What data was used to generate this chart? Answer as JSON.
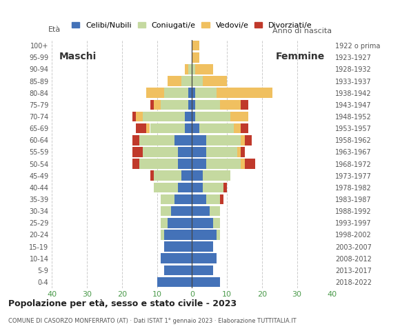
{
  "title": "Popolazione per età, sesso e stato civile - 2023",
  "subtitle": "COMUNE DI CASORZO MONFERRATO (AT) · Dati ISTAT 1° gennaio 2023 · Elaborazione TUTTITALIA.IT",
  "xlabel_left": "Maschi",
  "xlabel_right": "Femmine",
  "ylabel_left": "Età",
  "ylabel_right": "Anno di nascita",
  "age_groups": [
    "0-4",
    "5-9",
    "10-14",
    "15-19",
    "20-24",
    "25-29",
    "30-34",
    "35-39",
    "40-44",
    "45-49",
    "50-54",
    "55-59",
    "60-64",
    "65-69",
    "70-74",
    "75-79",
    "80-84",
    "85-89",
    "90-94",
    "95-99",
    "100+"
  ],
  "birth_years": [
    "2018-2022",
    "2013-2017",
    "2008-2012",
    "2003-2007",
    "1998-2002",
    "1993-1997",
    "1988-1992",
    "1983-1987",
    "1978-1982",
    "1973-1977",
    "1968-1972",
    "1963-1967",
    "1958-1962",
    "1953-1957",
    "1948-1952",
    "1943-1947",
    "1938-1942",
    "1933-1937",
    "1928-1932",
    "1923-1927",
    "1922 o prima"
  ],
  "colors": {
    "celibi": "#4472b8",
    "coniugati": "#c5d9a0",
    "vedovi": "#f0c060",
    "divorziati": "#c0392b"
  },
  "legend_labels": [
    "Celibi/Nubili",
    "Coniugati/e",
    "Vedovi/e",
    "Divorziati/e"
  ],
  "xlim": 40,
  "male_celibi": [
    10,
    8,
    9,
    8,
    8,
    7,
    6,
    5,
    4,
    3,
    4,
    4,
    5,
    2,
    2,
    1,
    1,
    0,
    0,
    0,
    0
  ],
  "male_coniugati": [
    0,
    0,
    0,
    0,
    1,
    2,
    3,
    4,
    7,
    8,
    11,
    10,
    10,
    10,
    12,
    8,
    7,
    3,
    1,
    0,
    0
  ],
  "male_vedovi": [
    0,
    0,
    0,
    0,
    0,
    0,
    0,
    0,
    0,
    0,
    0,
    0,
    0,
    1,
    2,
    2,
    5,
    4,
    1,
    0,
    0
  ],
  "male_divorziati": [
    0,
    0,
    0,
    0,
    0,
    0,
    0,
    0,
    0,
    1,
    2,
    3,
    2,
    3,
    1,
    1,
    0,
    0,
    0,
    0,
    0
  ],
  "female_celibi": [
    8,
    6,
    7,
    6,
    7,
    6,
    5,
    4,
    3,
    3,
    4,
    4,
    4,
    2,
    1,
    1,
    1,
    0,
    0,
    0,
    0
  ],
  "female_coniugati": [
    0,
    0,
    0,
    0,
    1,
    2,
    3,
    4,
    6,
    8,
    10,
    9,
    10,
    10,
    10,
    7,
    6,
    3,
    1,
    0,
    0
  ],
  "female_vedovi": [
    0,
    0,
    0,
    0,
    0,
    0,
    0,
    0,
    0,
    0,
    1,
    1,
    1,
    2,
    5,
    6,
    16,
    7,
    5,
    2,
    2
  ],
  "female_divorziati": [
    0,
    0,
    0,
    0,
    0,
    0,
    0,
    1,
    1,
    0,
    3,
    1,
    2,
    2,
    0,
    2,
    0,
    0,
    0,
    0,
    0
  ],
  "background_color": "#ffffff",
  "grid_color": "#cccccc",
  "tick_color": "#4a9a4a"
}
